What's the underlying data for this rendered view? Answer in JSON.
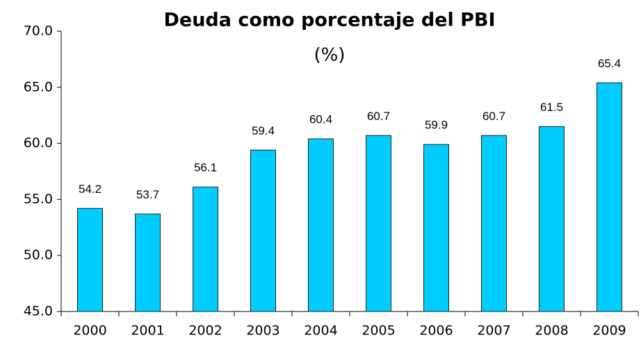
{
  "chart_data": {
    "type": "bar",
    "title": "Deuda como porcentaje del PBI",
    "subtitle": "(%)",
    "categories": [
      "2000",
      "2001",
      "2002",
      "2003",
      "2004",
      "2005",
      "2006",
      "2007",
      "2008",
      "2009"
    ],
    "values": [
      54.2,
      53.7,
      56.1,
      59.4,
      60.4,
      60.7,
      59.9,
      60.7,
      61.5,
      65.4
    ],
    "color": "#00ccff",
    "ylim": [
      45,
      70
    ],
    "yticks": [
      {
        "value": 45,
        "label": "45.0"
      },
      {
        "value": 50,
        "label": "50.0"
      },
      {
        "value": 55,
        "label": "55.0"
      },
      {
        "value": 60,
        "label": "60.0"
      },
      {
        "value": 65,
        "label": "65.0"
      },
      {
        "value": 70,
        "label": "70.0"
      }
    ],
    "grid": false
  }
}
